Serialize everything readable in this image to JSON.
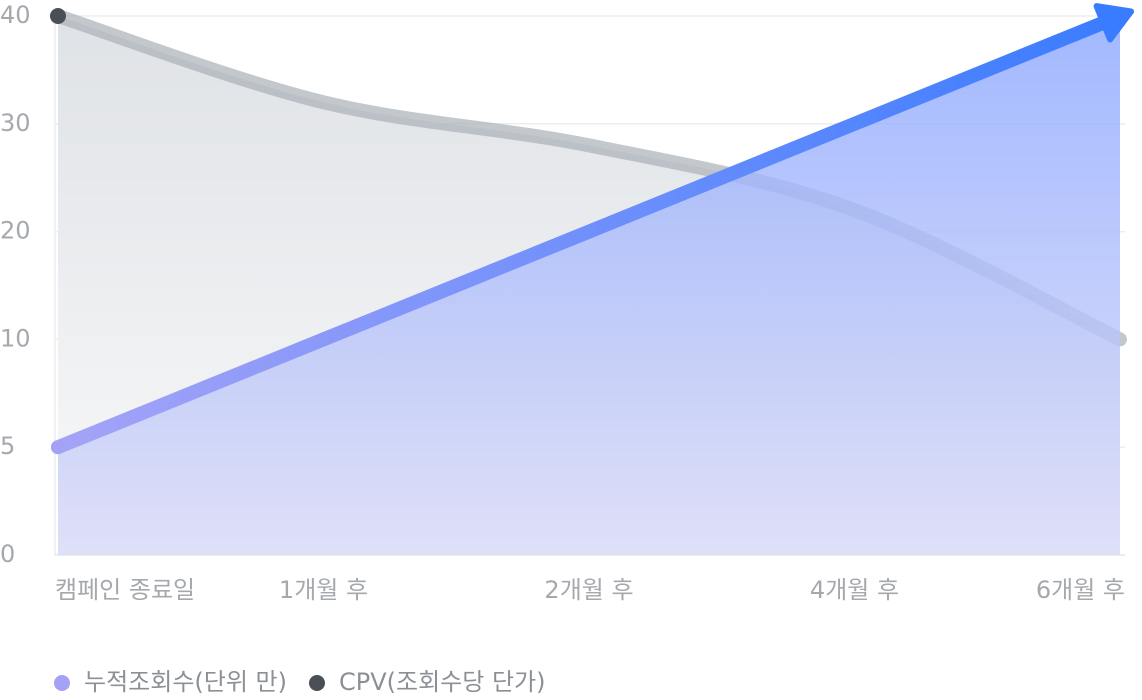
{
  "chart_data": {
    "type": "line",
    "categories": [
      "캠페인 종료일",
      "1개월 후",
      "2개월 후",
      "4개월 후",
      "6개월 후"
    ],
    "series": [
      {
        "name": "누적조회수(단위 만)",
        "color": "#a4a2f6",
        "values": [
          5,
          10,
          20,
          30,
          40
        ]
      },
      {
        "name": "CPV(조회수당 단가)",
        "color": "#4a4f57",
        "values": [
          40,
          32,
          28,
          22,
          10
        ]
      }
    ],
    "yticks": [
      0,
      5,
      10,
      20,
      30,
      40
    ],
    "ylim": [
      0,
      40
    ],
    "grid": true
  }
}
